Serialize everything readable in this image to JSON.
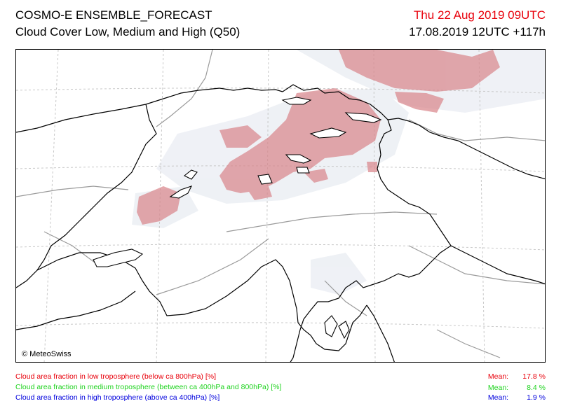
{
  "header": {
    "title": "COSMO-E ENSEMBLE_FORECAST",
    "subtitle": "Cloud Cover Low, Medium and High (Q50)",
    "valid_time": "Thu 22 Aug 2019 09UTC",
    "run_info": "17.08.2019 12UTC +117h",
    "valid_time_color": "#e8000b"
  },
  "map": {
    "copyright": "© MeteoSwiss",
    "colors": {
      "low_cloud": "#d9848a",
      "medium_cloud": "#1ed31e",
      "high_cloud": "#0000dd",
      "faint_cloud": "#eceff4",
      "borders": "#000000",
      "rivers": "#9a9a9a",
      "grid": "#c8c8c8"
    }
  },
  "legend": {
    "low": "Cloud area fraction in low troposphere (below ca 800hPa) [%]",
    "medium": "Cloud area fraction in medium troposphere (between ca 400hPa and 800hPa) [%]",
    "high": "Cloud area fraction in high troposphere (above ca 400hPa) [%]"
  },
  "means": {
    "label": "Mean:",
    "low": "17.8 %",
    "medium": "8.4 %",
    "high": "1.9 %"
  }
}
